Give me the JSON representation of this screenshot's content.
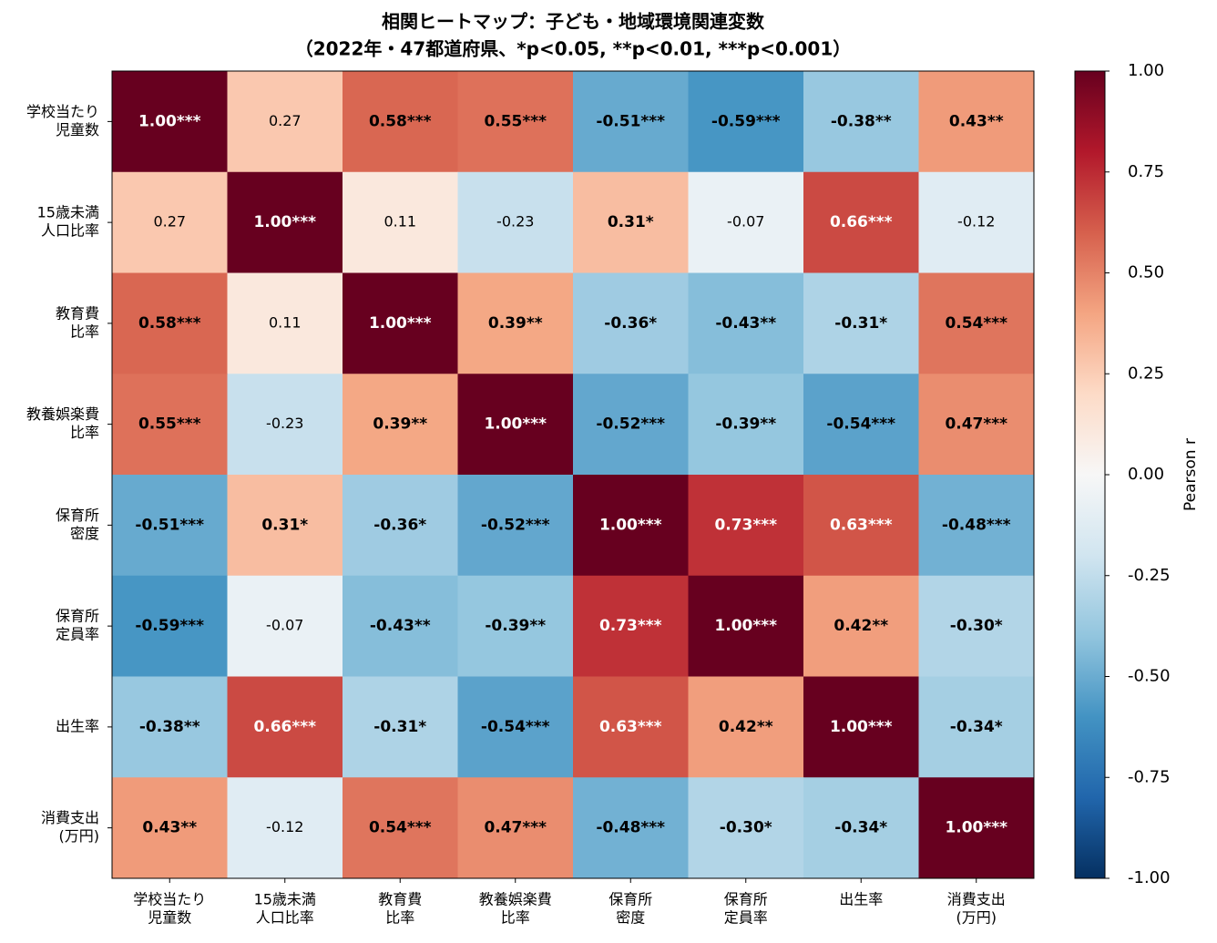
{
  "chart_data": {
    "type": "heatmap",
    "title": [
      "相関ヒートマップ：子ども・地域環境関連変数",
      "（2022年・47都道府県、*p<0.05, **p<0.01, ***p<0.001）"
    ],
    "xcategories": [
      [
        "学校当たり",
        "児童数"
      ],
      [
        "15歳未満",
        "人口比率"
      ],
      [
        "教育費",
        "比率"
      ],
      [
        "教養娯楽費",
        "比率"
      ],
      [
        "保育所",
        "密度"
      ],
      [
        "保育所",
        "定員率"
      ],
      [
        "出生率"
      ],
      [
        "消費支出",
        "(万円)"
      ]
    ],
    "ycategories": [
      [
        "学校当たり",
        "児童数"
      ],
      [
        "15歳未満",
        "人口比率"
      ],
      [
        "教育費",
        "比率"
      ],
      [
        "教養娯楽費",
        "比率"
      ],
      [
        "保育所",
        "密度"
      ],
      [
        "保育所",
        "定員率"
      ],
      [
        "出生率"
      ],
      [
        "消費支出",
        "(万円)"
      ]
    ],
    "values": [
      [
        1.0,
        0.27,
        0.58,
        0.55,
        -0.51,
        -0.59,
        -0.38,
        0.43
      ],
      [
        0.27,
        1.0,
        0.11,
        -0.23,
        0.31,
        -0.07,
        0.66,
        -0.12
      ],
      [
        0.58,
        0.11,
        1.0,
        0.39,
        -0.36,
        -0.43,
        -0.31,
        0.54
      ],
      [
        0.55,
        -0.23,
        0.39,
        1.0,
        -0.52,
        -0.39,
        -0.54,
        0.47
      ],
      [
        -0.51,
        0.31,
        -0.36,
        -0.52,
        1.0,
        0.73,
        0.63,
        -0.48
      ],
      [
        -0.59,
        -0.07,
        -0.43,
        -0.39,
        0.73,
        1.0,
        0.42,
        -0.3
      ],
      [
        -0.38,
        0.66,
        -0.31,
        -0.54,
        0.63,
        0.42,
        1.0,
        -0.34
      ],
      [
        0.43,
        -0.12,
        0.54,
        0.47,
        -0.48,
        -0.3,
        -0.34,
        1.0
      ]
    ],
    "value_labels": [
      [
        "1.00***",
        "0.27",
        "0.58***",
        "0.55***",
        "-0.51***",
        "-0.59***",
        "-0.38**",
        "0.43**"
      ],
      [
        "0.27",
        "1.00***",
        "0.11",
        "-0.23",
        "0.31*",
        "-0.07",
        "0.66***",
        "-0.12"
      ],
      [
        "0.58***",
        "0.11",
        "1.00***",
        "0.39**",
        "-0.36*",
        "-0.43**",
        "-0.31*",
        "0.54***"
      ],
      [
        "0.55***",
        "-0.23",
        "0.39**",
        "1.00***",
        "-0.52***",
        "-0.39**",
        "-0.54***",
        "0.47***"
      ],
      [
        "-0.51***",
        "0.31*",
        "-0.36*",
        "-0.52***",
        "1.00***",
        "0.73***",
        "0.63***",
        "-0.48***"
      ],
      [
        "-0.59***",
        "-0.07",
        "-0.43**",
        "-0.39**",
        "0.73***",
        "1.00***",
        "0.42**",
        "-0.30*"
      ],
      [
        "-0.38**",
        "0.66***",
        "-0.31*",
        "-0.54***",
        "0.63***",
        "0.42**",
        "1.00***",
        "-0.34*"
      ],
      [
        "0.43**",
        "-0.12",
        "0.54***",
        "0.47***",
        "-0.48***",
        "-0.30*",
        "-0.34*",
        "1.00***"
      ]
    ],
    "colormap": "RdBu_r",
    "colorbar_label": "Pearson r",
    "clim": [
      -1,
      1
    ],
    "cticks": [
      {
        "value": -1,
        "label": "-1.00"
      },
      {
        "value": -0.75,
        "label": "-0.75"
      },
      {
        "value": -0.5,
        "label": "-0.50"
      },
      {
        "value": -0.25,
        "label": "-0.25"
      },
      {
        "value": 0,
        "label": "0.00"
      },
      {
        "value": 0.25,
        "label": "0.25"
      },
      {
        "value": 0.5,
        "label": "0.50"
      },
      {
        "value": 0.75,
        "label": "0.75"
      },
      {
        "value": 1,
        "label": "1.00"
      }
    ]
  }
}
